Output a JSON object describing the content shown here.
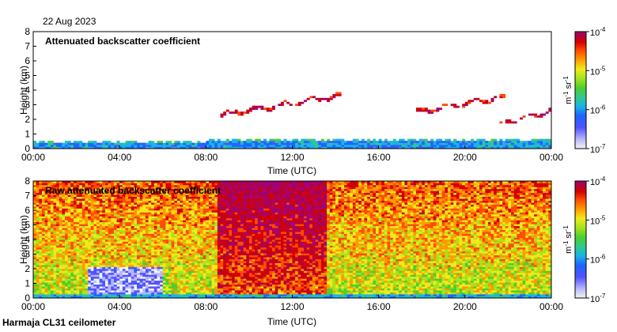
{
  "date": "22 Aug 2023",
  "footer": "Harmaja CL31 ceilometer",
  "colors": {
    "scale": [
      "#f2f2f2",
      "#b7b7ff",
      "#5252ff",
      "#1e64ff",
      "#18b4e6",
      "#31c98a",
      "#4ccf2e",
      "#a6e31c",
      "#f0ea1a",
      "#ff9a00",
      "#ff4a00",
      "#d40000",
      "#b4003a",
      "#a00078"
    ],
    "axis": "#000000",
    "background": "#ffffff"
  },
  "chart_data": [
    {
      "type": "heatmap",
      "title": "Attenuated backscatter coefficient",
      "xlabel": "Time (UTC)",
      "ylabel": "Height (km)",
      "xticks": [
        "00:00",
        "04:00",
        "08:00",
        "12:00",
        "16:00",
        "20:00",
        "00:00"
      ],
      "xlim_hours": [
        0,
        24
      ],
      "yticks": [
        "0",
        "1",
        "2",
        "3",
        "4",
        "5",
        "6",
        "7",
        "8"
      ],
      "ylim_km": [
        0,
        8
      ],
      "colorbar": {
        "ticks": [
          {
            "base": "10",
            "exp": "-4"
          },
          {
            "base": "10",
            "exp": "-5"
          },
          {
            "base": "10",
            "exp": "-6"
          },
          {
            "base": "10",
            "exp": "-7"
          }
        ],
        "unit_parts": [
          "m",
          "-1",
          " sr",
          "-1"
        ],
        "range": [
          1e-07,
          0.0001
        ]
      },
      "features": {
        "boundary_layer_top_km": 0.45,
        "cloud_layers": [
          {
            "from_h": 8.7,
            "to_h": 14.2,
            "height_km": 2.3,
            "to_height_km": 3.6
          },
          {
            "from_h": 17.7,
            "to_h": 21.8,
            "height_km": 2.5,
            "to_height_km": 3.5
          },
          {
            "from_h": 21.3,
            "to_h": 24.0,
            "height_km": 1.6,
            "to_height_km": 2.6
          }
        ]
      }
    },
    {
      "type": "heatmap",
      "title": "Raw attenuated backscatter coefficient",
      "xlabel": "Time (UTC)",
      "ylabel": "Height (km)",
      "xticks": [
        "00:00",
        "04:00",
        "08:00",
        "12:00",
        "16:00",
        "20:00",
        "00:00"
      ],
      "xlim_hours": [
        0,
        24
      ],
      "yticks": [
        "0",
        "1",
        "2",
        "3",
        "4",
        "5",
        "6",
        "7",
        "8"
      ],
      "ylim_km": [
        0,
        8
      ],
      "colorbar": {
        "ticks": [
          {
            "base": "10",
            "exp": "-4"
          },
          {
            "base": "10",
            "exp": "-5"
          },
          {
            "base": "10",
            "exp": "-6"
          },
          {
            "base": "10",
            "exp": "-7"
          }
        ],
        "unit_parts": [
          "m",
          "-1",
          " sr",
          "-1"
        ],
        "range": [
          1e-07,
          0.0001
        ]
      },
      "features": {
        "noise_daytime_from_h": 8.5,
        "noise_daytime_to_h": 13.6,
        "clear_region_from_h": 2.5,
        "clear_region_to_h": 6.0
      }
    }
  ]
}
